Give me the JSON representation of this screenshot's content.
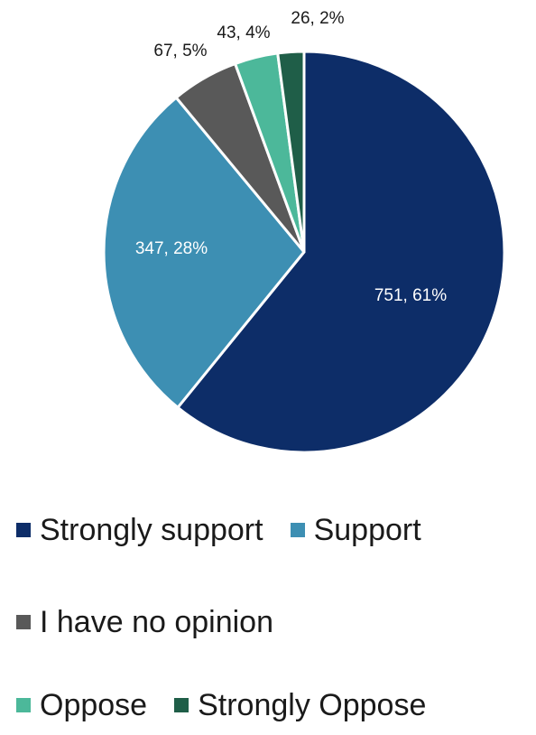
{
  "chart_data": {
    "type": "pie",
    "title": "",
    "slices": [
      {
        "label": "Strongly support",
        "value": 751,
        "percent": 61,
        "data_label": "751, 61%",
        "color": "#0d2d68"
      },
      {
        "label": "Support",
        "value": 347,
        "percent": 28,
        "data_label": "347, 28%",
        "color": "#3d8fb3"
      },
      {
        "label": "I have no opinion",
        "value": 67,
        "percent": 5,
        "data_label": "67, 5%",
        "color": "#595959"
      },
      {
        "label": "Oppose",
        "value": 43,
        "percent": 4,
        "data_label": "43, 4%",
        "color": "#4cb89a"
      },
      {
        "label": "Strongly Oppose",
        "value": 26,
        "percent": 2,
        "data_label": "26, 2%",
        "color": "#1f5e48"
      }
    ],
    "legend_position": "bottom"
  }
}
